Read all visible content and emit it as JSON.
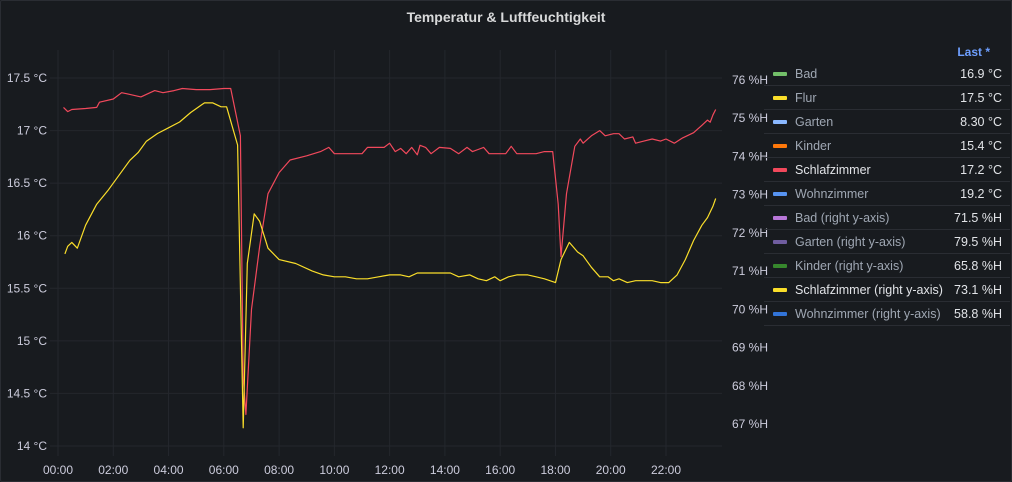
{
  "panel": {
    "title": "Temperatur & Luftfeuchtigkeit"
  },
  "legend": {
    "header": "Last *",
    "items": [
      {
        "name": "Bad",
        "color": "#73bf69",
        "last": "16.9 °C"
      },
      {
        "name": "Flur",
        "color": "#fade2a",
        "last": "17.5 °C"
      },
      {
        "name": "Garten",
        "color": "#8ab8ff",
        "last": "8.30 °C"
      },
      {
        "name": "Kinder",
        "color": "#ff780a",
        "last": "15.4 °C"
      },
      {
        "name": "Schlafzimmer",
        "color": "#f2495c",
        "last": "17.2 °C",
        "highlight": true
      },
      {
        "name": "Wohnzimmer",
        "color": "#5794f2",
        "last": "19.2 °C"
      },
      {
        "name": "Bad (right y-axis)",
        "color": "#b877d9",
        "last": "71.5 %H"
      },
      {
        "name": "Garten (right y-axis)",
        "color": "#705da0",
        "last": "79.5 %H"
      },
      {
        "name": "Kinder (right y-axis)",
        "color": "#37872d",
        "last": "65.8 %H"
      },
      {
        "name": "Schlafzimmer (right y-axis)",
        "color": "#fade2a",
        "last": "73.1 %H",
        "highlight": true
      },
      {
        "name": "Wohnzimmer (right y-axis)",
        "color": "#3274d9",
        "last": "58.8 %H"
      }
    ]
  },
  "chart_data": {
    "type": "line",
    "title": "Temperatur & Luftfeuchtigkeit",
    "x_ticks": [
      "00:00",
      "02:00",
      "04:00",
      "06:00",
      "08:00",
      "10:00",
      "12:00",
      "14:00",
      "16:00",
      "18:00",
      "20:00",
      "22:00"
    ],
    "x_range_hours": [
      -0.1,
      23.8
    ],
    "y_left": {
      "ticks": [
        "14 °C",
        "14.5 °C",
        "15 °C",
        "15.5 °C",
        "16 °C",
        "16.5 °C",
        "17 °C",
        "17.5 °C"
      ],
      "range": [
        13.9,
        17.65
      ]
    },
    "y_right": {
      "ticks": [
        "67 %H",
        "68 %H",
        "69 %H",
        "70 %H",
        "71 %H",
        "72 %H",
        "73 %H",
        "74 %H",
        "75 %H",
        "76 %H"
      ],
      "range": [
        66.6,
        76.2
      ]
    },
    "grid": true,
    "series": [
      {
        "name": "Schlafzimmer",
        "axis": "left",
        "color": "#f2495c",
        "points": [
          [
            0.2,
            17.22
          ],
          [
            0.35,
            17.18
          ],
          [
            0.5,
            17.2
          ],
          [
            1.0,
            17.21
          ],
          [
            1.4,
            17.22
          ],
          [
            1.5,
            17.27
          ],
          [
            2.0,
            17.3
          ],
          [
            2.3,
            17.36
          ],
          [
            2.5,
            17.35
          ],
          [
            3.0,
            17.32
          ],
          [
            3.5,
            17.38
          ],
          [
            3.8,
            17.36
          ],
          [
            4.2,
            17.38
          ],
          [
            4.5,
            17.4
          ],
          [
            5.0,
            17.39
          ],
          [
            5.5,
            17.39
          ],
          [
            6.0,
            17.4
          ],
          [
            6.25,
            17.4
          ],
          [
            6.6,
            16.95
          ],
          [
            6.7,
            14.65
          ],
          [
            6.8,
            14.3
          ],
          [
            7.0,
            15.3
          ],
          [
            7.3,
            15.9
          ],
          [
            7.6,
            16.4
          ],
          [
            8.0,
            16.6
          ],
          [
            8.4,
            16.72
          ],
          [
            9.0,
            16.76
          ],
          [
            9.5,
            16.8
          ],
          [
            9.8,
            16.84
          ],
          [
            10.0,
            16.78
          ],
          [
            10.5,
            16.78
          ],
          [
            11.0,
            16.78
          ],
          [
            11.2,
            16.84
          ],
          [
            11.5,
            16.84
          ],
          [
            11.8,
            16.84
          ],
          [
            12.0,
            16.88
          ],
          [
            12.2,
            16.8
          ],
          [
            12.4,
            16.83
          ],
          [
            12.6,
            16.78
          ],
          [
            12.8,
            16.84
          ],
          [
            13.0,
            16.77
          ],
          [
            13.1,
            16.86
          ],
          [
            13.3,
            16.84
          ],
          [
            13.5,
            16.78
          ],
          [
            13.8,
            16.84
          ],
          [
            14.2,
            16.83
          ],
          [
            14.5,
            16.78
          ],
          [
            14.8,
            16.84
          ],
          [
            15.0,
            16.8
          ],
          [
            15.2,
            16.82
          ],
          [
            15.4,
            16.84
          ],
          [
            15.6,
            16.78
          ],
          [
            15.9,
            16.78
          ],
          [
            16.2,
            16.78
          ],
          [
            16.4,
            16.85
          ],
          [
            16.6,
            16.78
          ],
          [
            17.0,
            16.78
          ],
          [
            17.3,
            16.78
          ],
          [
            17.6,
            16.8
          ],
          [
            17.9,
            16.8
          ],
          [
            18.1,
            16.3
          ],
          [
            18.2,
            15.8
          ],
          [
            18.4,
            16.4
          ],
          [
            18.7,
            16.85
          ],
          [
            18.9,
            16.92
          ],
          [
            19.0,
            16.88
          ],
          [
            19.3,
            16.95
          ],
          [
            19.6,
            17.0
          ],
          [
            19.8,
            16.95
          ],
          [
            20.1,
            16.97
          ],
          [
            20.3,
            16.97
          ],
          [
            20.5,
            16.92
          ],
          [
            20.8,
            16.94
          ],
          [
            20.9,
            16.88
          ],
          [
            21.2,
            16.9
          ],
          [
            21.5,
            16.92
          ],
          [
            21.8,
            16.9
          ],
          [
            22.0,
            16.92
          ],
          [
            22.3,
            16.88
          ],
          [
            22.6,
            16.93
          ],
          [
            23.0,
            16.98
          ],
          [
            23.3,
            17.05
          ],
          [
            23.5,
            17.1
          ],
          [
            23.6,
            17.08
          ],
          [
            23.7,
            17.15
          ],
          [
            23.8,
            17.2
          ]
        ]
      },
      {
        "name": "Schlafzimmer (right y-axis)",
        "axis": "right",
        "color": "#fade2a",
        "points": [
          [
            0.25,
            71.45
          ],
          [
            0.35,
            71.65
          ],
          [
            0.5,
            71.75
          ],
          [
            0.7,
            71.6
          ],
          [
            1.0,
            72.2
          ],
          [
            1.4,
            72.75
          ],
          [
            1.8,
            73.1
          ],
          [
            2.3,
            73.6
          ],
          [
            2.6,
            73.9
          ],
          [
            2.9,
            74.1
          ],
          [
            3.2,
            74.4
          ],
          [
            3.6,
            74.6
          ],
          [
            4.0,
            74.75
          ],
          [
            4.4,
            74.9
          ],
          [
            4.8,
            75.15
          ],
          [
            5.2,
            75.35
          ],
          [
            5.3,
            75.4
          ],
          [
            5.6,
            75.4
          ],
          [
            5.9,
            75.3
          ],
          [
            6.1,
            75.3
          ],
          [
            6.5,
            74.3
          ],
          [
            6.7,
            66.9
          ],
          [
            6.85,
            71.2
          ],
          [
            7.1,
            72.5
          ],
          [
            7.3,
            72.3
          ],
          [
            7.6,
            71.6
          ],
          [
            8.0,
            71.3
          ],
          [
            8.6,
            71.2
          ],
          [
            9.2,
            71.0
          ],
          [
            9.6,
            70.9
          ],
          [
            10.0,
            70.85
          ],
          [
            10.4,
            70.85
          ],
          [
            10.8,
            70.8
          ],
          [
            11.2,
            70.8
          ],
          [
            11.6,
            70.85
          ],
          [
            12.0,
            70.9
          ],
          [
            12.4,
            70.9
          ],
          [
            12.7,
            70.85
          ],
          [
            13.0,
            70.95
          ],
          [
            13.4,
            70.95
          ],
          [
            13.8,
            70.95
          ],
          [
            14.2,
            70.95
          ],
          [
            14.5,
            70.85
          ],
          [
            14.9,
            70.9
          ],
          [
            15.2,
            70.8
          ],
          [
            15.5,
            70.75
          ],
          [
            15.8,
            70.85
          ],
          [
            16.0,
            70.75
          ],
          [
            16.3,
            70.85
          ],
          [
            16.6,
            70.9
          ],
          [
            17.0,
            70.9
          ],
          [
            17.3,
            70.85
          ],
          [
            17.6,
            70.8
          ],
          [
            18.0,
            70.7
          ],
          [
            18.2,
            71.3
          ],
          [
            18.5,
            71.75
          ],
          [
            18.8,
            71.5
          ],
          [
            19.0,
            71.4
          ],
          [
            19.3,
            71.1
          ],
          [
            19.6,
            70.85
          ],
          [
            19.9,
            70.85
          ],
          [
            20.1,
            70.75
          ],
          [
            20.3,
            70.8
          ],
          [
            20.6,
            70.7
          ],
          [
            20.9,
            70.75
          ],
          [
            21.2,
            70.75
          ],
          [
            21.5,
            70.75
          ],
          [
            21.8,
            70.7
          ],
          [
            22.1,
            70.7
          ],
          [
            22.4,
            70.9
          ],
          [
            22.7,
            71.3
          ],
          [
            23.0,
            71.8
          ],
          [
            23.3,
            72.2
          ],
          [
            23.5,
            72.4
          ],
          [
            23.7,
            72.7
          ],
          [
            23.8,
            72.9
          ]
        ]
      }
    ]
  }
}
